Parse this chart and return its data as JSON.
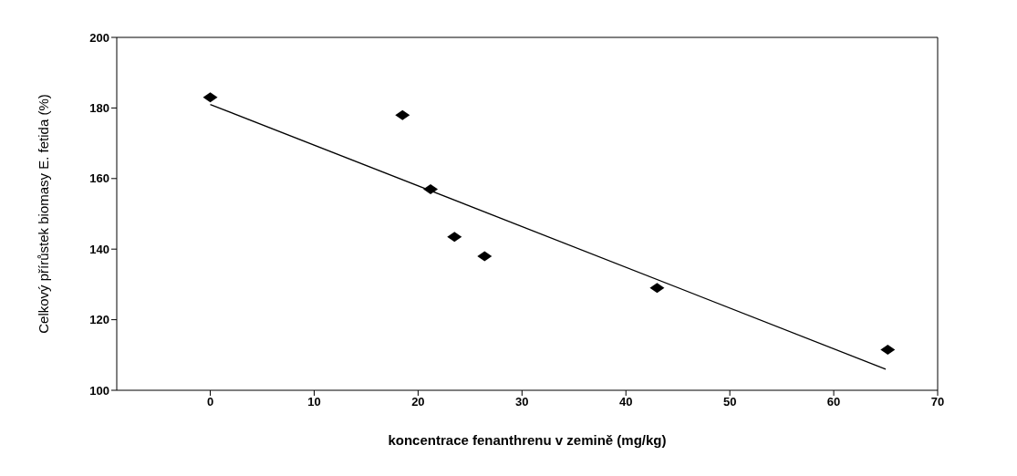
{
  "chart_data": {
    "type": "scatter",
    "xlabel": "koncentrace fenanthrenu v zemině (mg/kg)",
    "ylabel": "Celkový přírůstek biomasy E. fetida (%)",
    "xlim": [
      -9,
      70
    ],
    "xticks": [
      0,
      10,
      20,
      30,
      40,
      50,
      60,
      70
    ],
    "ylim": [
      100,
      200
    ],
    "yticks": [
      100,
      120,
      140,
      160,
      180,
      200
    ],
    "marker": "diamond",
    "series": [
      {
        "color": "#000000",
        "x": [
          0,
          18.5,
          21.2,
          23.5,
          26.4,
          43,
          65.2
        ],
        "values": [
          183,
          178,
          157,
          143.5,
          138,
          129,
          111.5
        ]
      },
      {
        "type": "line",
        "color": "#000000",
        "marker": "none",
        "line_style": "solid",
        "x": [
          0,
          65
        ],
        "values": [
          181,
          106
        ]
      }
    ]
  }
}
